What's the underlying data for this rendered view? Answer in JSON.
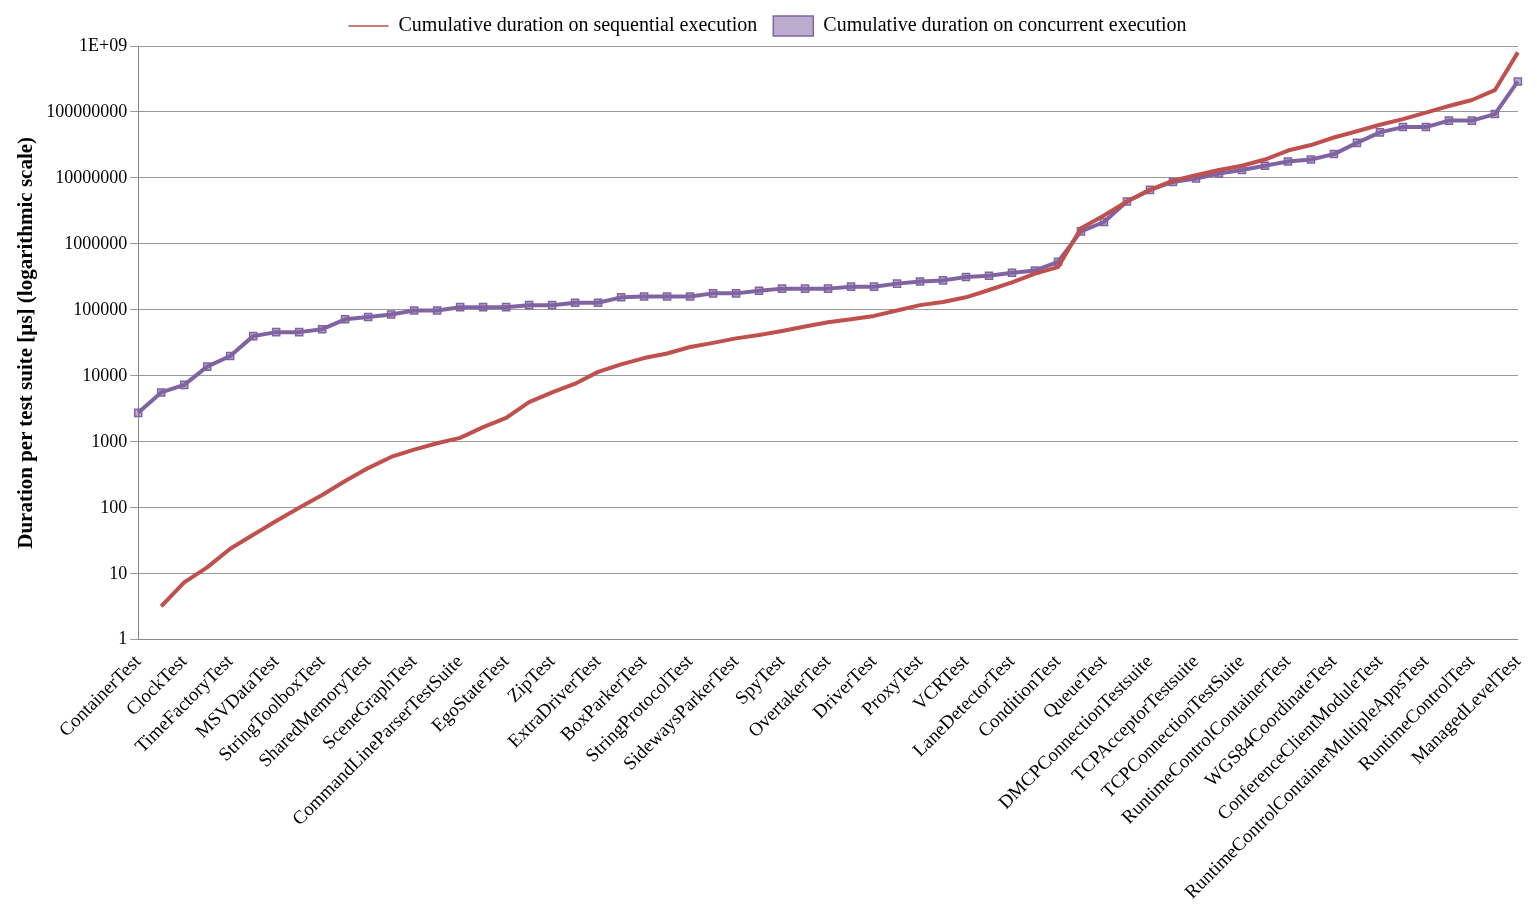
{
  "chart_data": {
    "type": "line",
    "ylabel": "Duration per test suite [µs] (logarithmic scale)",
    "log": "y",
    "grid": "y",
    "legend": "top",
    "categories": [
      "ContainerTest",
      null,
      "ClockTest",
      null,
      "TimeFactoryTest",
      null,
      "MSVDataTest",
      null,
      "StringToolboxTest",
      null,
      "SharedMemoryTest",
      null,
      "SceneGraphTest",
      null,
      "CommandLineParserTestSuite",
      null,
      "EgoStateTest",
      null,
      "ZipTest",
      null,
      "ExtraDriverTest",
      null,
      "BoxParkerTest",
      null,
      "StringProtocolTest",
      null,
      "SidewaysParkerTest",
      null,
      "SpyTest",
      null,
      "OvertakerTest",
      null,
      "DriverTest",
      null,
      "ProxyTest",
      null,
      "VCRTest",
      null,
      "LaneDetectorTest",
      null,
      "ConditionTest",
      null,
      "QueueTest",
      null,
      "DMCPConnectionTestsuite",
      null,
      "TCPAcceptorTestsuite",
      null,
      "TCPConnectionTestSuite",
      null,
      "RuntimeControlContainerTest",
      null,
      "WGS84CoordinateTest",
      null,
      "ConferenceClientModuleTest",
      null,
      "RuntimeControlContainerMultipleAppsTest",
      null,
      "RuntimeControlTest",
      null,
      "ManagedLevelTest"
    ],
    "ylim": [
      1,
      1000000000
    ],
    "yticks": [
      1,
      10,
      100,
      1000,
      10000,
      100000,
      1000000,
      10000000,
      100000000,
      {
        "value": 1000000000,
        "label": "1E+09"
      }
    ],
    "series": [
      {
        "name": "Cumulative duration on sequential execution",
        "color": "#c0504d",
        "marker": "none",
        "values": [
          null,
          3.2,
          7.4,
          12.5,
          24,
          39,
          63,
          100,
          156,
          255,
          400,
          590,
          760,
          950,
          1150,
          1670,
          2300,
          4000,
          5600,
          7600,
          11500,
          14900,
          18600,
          21800,
          27400,
          31600,
          37000,
          41500,
          48000,
          56000,
          65000,
          72000,
          81000,
          98000,
          118000,
          132000,
          155000,
          200000,
          262000,
          355000,
          445000,
          1730000,
          2700000,
          4400000,
          6600000,
          9100000,
          11000000,
          13200000,
          15300000,
          19000000,
          26000000,
          31500000,
          41000000,
          51000000,
          64000000,
          78000000,
          98000000,
          123000000,
          152000000,
          214000000,
          800000000
        ]
      },
      {
        "name": "Cumulative duration on concurrent execution",
        "color": "#8064a2",
        "marker": "square",
        "values": [
          2750,
          5600,
          7300,
          13800,
          20000,
          40000,
          46000,
          46000,
          51000,
          72000,
          78000,
          85000,
          98000,
          98000,
          110000,
          110000,
          110000,
          118000,
          118000,
          128000,
          128000,
          155000,
          160000,
          160000,
          160000,
          178000,
          178000,
          195000,
          210000,
          210000,
          210000,
          225000,
          225000,
          250000,
          270000,
          280000,
          315000,
          330000,
          365000,
          395000,
          535000,
          1550000,
          2150000,
          4400000,
          6600000,
          8700000,
          9800000,
          11700000,
          13200000,
          15300000,
          17800000,
          19000000,
          23000000,
          34000000,
          49000000,
          59000000,
          59000000,
          74000000,
          74000000,
          93000000,
          290000000
        ]
      }
    ]
  }
}
